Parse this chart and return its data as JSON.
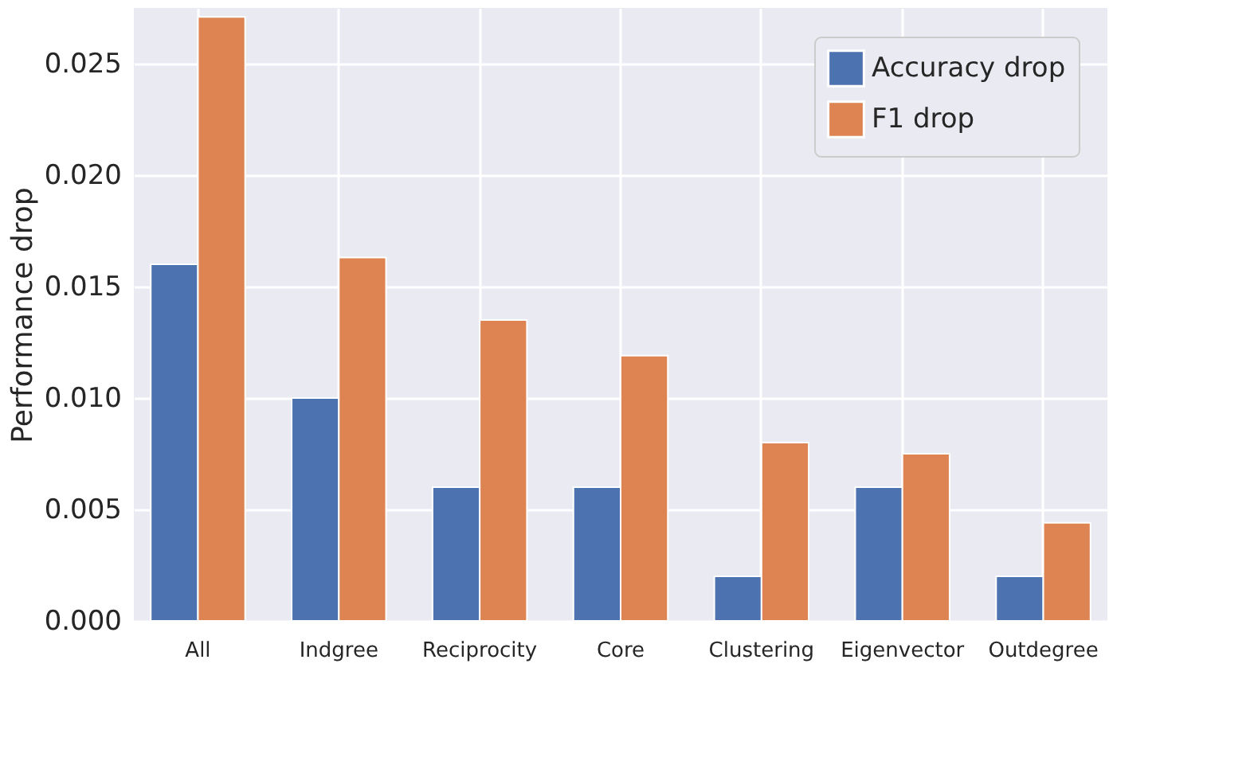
{
  "chart_data": {
    "type": "bar",
    "ylabel": "Performance drop",
    "categories": [
      "All",
      "Indgree",
      "Reciprocity",
      "Core",
      "Clustering",
      "Eigenvector",
      "Outdegree"
    ],
    "series": [
      {
        "name": "Accuracy drop",
        "color": "#4c72b0",
        "values": [
          0.016,
          0.01,
          0.006,
          0.006,
          0.002,
          0.006,
          0.002
        ]
      },
      {
        "name": "F1 drop",
        "color": "#dd8452",
        "values": [
          0.0271,
          0.0163,
          0.0135,
          0.0119,
          0.008,
          0.0075,
          0.0044
        ]
      }
    ],
    "ylim": [
      0,
      0.0275
    ],
    "yticks": [
      {
        "value": 0,
        "label": "0.000"
      },
      0.005,
      {
        "value": 0.01,
        "label": "0.010"
      },
      0.015,
      {
        "value": 0.02,
        "label": "0.020"
      },
      0.025
    ],
    "grid": true,
    "legend": "top right"
  }
}
